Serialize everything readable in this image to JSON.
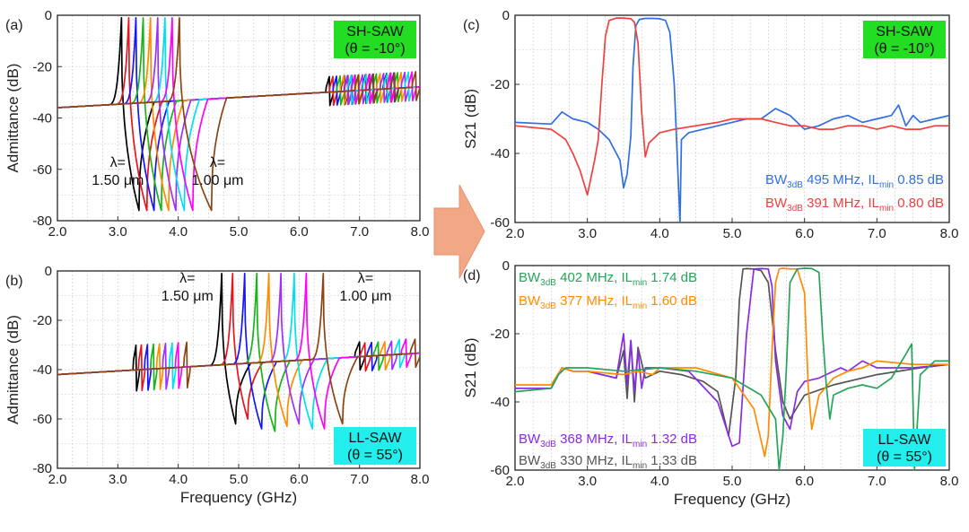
{
  "chart_data": [
    {
      "id": "a",
      "panel_label": "(a)",
      "type": "line",
      "xlabel": "",
      "ylabel": "Admittance (dB)",
      "xlim": [
        2.0,
        8.0
      ],
      "ylim": [
        -80,
        0
      ],
      "xticks": [
        "2.0",
        "3.0",
        "4.0",
        "5.0",
        "6.0",
        "7.0",
        "8.0"
      ],
      "yticks": [
        "0",
        "-20",
        "-40",
        "-60",
        "-80"
      ],
      "grid": true,
      "badge": {
        "line1": "SH-SAW",
        "line2": "(θ = -10°)",
        "color": "#22dd22",
        "placement": "top-right"
      },
      "annotations": [
        {
          "line1": "λ=",
          "line2": "1.50 μm",
          "x": 3.0,
          "y": -66
        },
        {
          "line1": "λ=",
          "line2": "1.00 μm",
          "x": 4.65,
          "y": -66
        }
      ],
      "series": [
        {
          "color": "#000000",
          "resonance": 3.06,
          "anti_resonance": 3.35,
          "fmin": 3.33,
          "fmax": 3.37
        },
        {
          "color": "#e8141e",
          "resonance": 3.18,
          "anti_resonance": 3.48,
          "fmin": 3.46,
          "fmax": 3.5
        },
        {
          "color": "#1414ff",
          "resonance": 3.3,
          "anti_resonance": 3.6,
          "fmin": 3.58,
          "fmax": 3.62
        },
        {
          "color": "#18b418",
          "resonance": 3.42,
          "anti_resonance": 3.72,
          "fmin": 3.7,
          "fmax": 3.74
        },
        {
          "color": "#ff8c00",
          "resonance": 3.54,
          "anti_resonance": 3.84,
          "fmin": 3.82,
          "fmax": 3.86
        },
        {
          "color": "#9b30ff",
          "resonance": 3.66,
          "anti_resonance": 3.96,
          "fmin": 3.94,
          "fmax": 3.98
        },
        {
          "color": "#00e0ee",
          "resonance": 3.78,
          "anti_resonance": 4.1,
          "fmin": 4.08,
          "fmax": 4.12
        },
        {
          "color": "#ff00ff",
          "resonance": 3.9,
          "anti_resonance": 4.24,
          "fmin": 4.22,
          "fmax": 4.26
        },
        {
          "color": "#8b4513",
          "resonance": 4.02,
          "anti_resonance": 4.55,
          "fmin": 4.53,
          "fmax": 4.57
        }
      ]
    },
    {
      "id": "b",
      "panel_label": "(b)",
      "type": "line",
      "xlabel": "Frequency (GHz)",
      "ylabel": "Admittance (dB)",
      "xlim": [
        2.0,
        8.0
      ],
      "ylim": [
        -80,
        0
      ],
      "xticks": [
        "2.0",
        "3.0",
        "4.0",
        "5.0",
        "6.0",
        "7.0",
        "8.0"
      ],
      "yticks": [
        "0",
        "-20",
        "-40",
        "-60",
        "-80"
      ],
      "grid": true,
      "badge": {
        "line1": "LL-SAW",
        "line2": "(θ = 55°)",
        "color": "#22eeee",
        "placement": "bottom-right"
      },
      "annotations": [
        {
          "line1": "λ=",
          "line2": "1.50 μm",
          "x": 4.15,
          "y": -12
        },
        {
          "line1": "λ=",
          "line2": "1.00 μm",
          "x": 7.1,
          "y": -12
        }
      ],
      "series": [
        {
          "color": "#000000",
          "resonance": 4.72,
          "anti_resonance": 4.95,
          "fmin": -62
        },
        {
          "color": "#e8141e",
          "resonance": 4.9,
          "anti_resonance": 5.15,
          "fmin": -60
        },
        {
          "color": "#1414ff",
          "resonance": 5.1,
          "anti_resonance": 5.38,
          "fmin": -64
        },
        {
          "color": "#18b418",
          "resonance": 5.3,
          "anti_resonance": 5.6,
          "fmin": -65
        },
        {
          "color": "#ff8c00",
          "resonance": 5.5,
          "anti_resonance": 5.8,
          "fmin": -63
        },
        {
          "color": "#9b30ff",
          "resonance": 5.7,
          "anti_resonance": 6.0,
          "fmin": -62
        },
        {
          "color": "#00e0ee",
          "resonance": 5.92,
          "anti_resonance": 6.22,
          "fmin": -64
        },
        {
          "color": "#ff00ff",
          "resonance": 6.12,
          "anti_resonance": 6.42,
          "fmin": -64
        },
        {
          "color": "#8b4513",
          "resonance": 6.4,
          "anti_resonance": 6.72,
          "fmin": -62
        }
      ]
    },
    {
      "id": "c",
      "panel_label": "(c)",
      "type": "line",
      "xlabel": "",
      "ylabel": "S21 (dB)",
      "xlim": [
        2.0,
        8.0
      ],
      "ylim": [
        -60,
        0
      ],
      "xticks": [
        "2.0",
        "3.0",
        "4.0",
        "5.0",
        "6.0",
        "7.0",
        "8.0"
      ],
      "yticks": [
        "0",
        "-20",
        "-40",
        "-60"
      ],
      "grid": true,
      "badge": {
        "line1": "SH-SAW",
        "line2": "(θ = -10°)",
        "color": "#22dd22",
        "placement": "top-right"
      },
      "legend_texts": [
        {
          "prefix": "BW",
          "sub1": "3dB",
          "mid": " 495 MHz, IL",
          "sub2": "min",
          "suffix": " 0.85 dB",
          "color": "#3070e0"
        },
        {
          "prefix": "BW",
          "sub1": "3dB",
          "mid": " 391 MHz, IL",
          "sub2": "min",
          "suffix": " 0.80 dB",
          "color": "#f04040"
        }
      ],
      "series": [
        {
          "color": "#3070e0",
          "x": [
            2.0,
            2.5,
            2.65,
            2.8,
            3.0,
            3.15,
            3.3,
            3.45,
            3.5,
            3.55,
            3.6,
            3.63,
            3.67,
            3.72,
            3.8,
            3.9,
            4.0,
            4.08,
            4.14,
            4.2,
            4.25,
            4.28,
            4.3,
            4.4,
            4.6,
            4.8,
            5.0,
            5.2,
            5.4,
            5.6,
            5.8,
            6.0,
            6.2,
            6.4,
            6.6,
            6.8,
            7.0,
            7.2,
            7.3,
            7.4,
            7.5,
            7.6,
            7.8,
            8.0
          ],
          "y": [
            -31,
            -31.5,
            -28,
            -30,
            -31,
            -33,
            -36,
            -42,
            -50,
            -46,
            -35,
            -15,
            -3,
            -1.2,
            -0.9,
            -0.9,
            -1,
            -1.5,
            -5,
            -20,
            -45,
            -60,
            -36,
            -34,
            -33,
            -32,
            -31,
            -30,
            -30,
            -27,
            -29,
            -33,
            -32,
            -30,
            -29,
            -31,
            -30,
            -29,
            -26,
            -32,
            -29,
            -31,
            -30,
            -29
          ]
        },
        {
          "color": "#f04040",
          "x": [
            2.0,
            2.5,
            2.7,
            2.8,
            2.9,
            3.0,
            3.05,
            3.1,
            3.15,
            3.2,
            3.25,
            3.3,
            3.4,
            3.5,
            3.6,
            3.65,
            3.7,
            3.75,
            3.8,
            3.85,
            3.9,
            4.0,
            4.2,
            4.5,
            4.8,
            5.0,
            5.2,
            5.4,
            5.6,
            5.8,
            6.0,
            6.2,
            6.4,
            6.6,
            6.8,
            7.0,
            7.2,
            7.4,
            7.6,
            7.8,
            8.0
          ],
          "y": [
            -32,
            -33,
            -36,
            -40,
            -45,
            -52,
            -47,
            -42,
            -36,
            -20,
            -6,
            -1.5,
            -0.8,
            -0.8,
            -1,
            -2,
            -8,
            -28,
            -41,
            -37,
            -36,
            -34,
            -33,
            -32,
            -31,
            -30,
            -30,
            -30,
            -31,
            -32,
            -32,
            -33,
            -33,
            -32,
            -32,
            -33,
            -32,
            -33,
            -33,
            -32,
            -32
          ]
        }
      ]
    },
    {
      "id": "d",
      "panel_label": "(d)",
      "type": "line",
      "xlabel": "Frequency (GHz)",
      "ylabel": "S21 (dB)",
      "xlim": [
        2.0,
        8.0
      ],
      "ylim": [
        -60,
        0
      ],
      "xticks": [
        "2.0",
        "3.0",
        "4.0",
        "5.0",
        "6.0",
        "7.0",
        "8.0"
      ],
      "yticks": [
        "0",
        "-20",
        "-40",
        "-60"
      ],
      "grid": true,
      "badge": {
        "line1": "LL-SAW",
        "line2": "(θ = 55°)",
        "color": "#22eeee",
        "placement": "bottom-right"
      },
      "legend_texts": [
        {
          "prefix": "BW",
          "sub1": "3dB",
          "mid": " 402 MHz, IL",
          "sub2": "min",
          "suffix": " 1.74 dB",
          "color": "#27a35a",
          "placement": "top"
        },
        {
          "prefix": "BW",
          "sub1": "3dB",
          "mid": " 377 MHz, IL",
          "sub2": "min",
          "suffix": " 1.60 dB",
          "color": "#ff8c00",
          "placement": "top"
        },
        {
          "prefix": "BW",
          "sub1": "3dB",
          "mid": " 368 MHz, IL",
          "sub2": "min",
          "suffix": " 1.32 dB",
          "color": "#8a2be2",
          "placement": "bottom"
        },
        {
          "prefix": "BW",
          "sub1": "3dB",
          "mid": " 330 MHz, IL",
          "sub2": "min",
          "suffix": " 1.33 dB",
          "color": "#555555",
          "placement": "bottom"
        }
      ],
      "series": [
        {
          "color": "#555555",
          "x": [
            2.0,
            2.5,
            2.65,
            2.8,
            3.0,
            3.4,
            3.5,
            3.55,
            3.6,
            3.65,
            3.7,
            3.8,
            4.0,
            4.3,
            4.6,
            4.8,
            4.95,
            5.05,
            5.1,
            5.15,
            5.2,
            5.3,
            5.4,
            5.5,
            5.6,
            5.7,
            5.8,
            6.0,
            6.4,
            7.0,
            7.6,
            8.0
          ],
          "y": [
            -36,
            -36,
            -30,
            -31,
            -31,
            -33,
            -25,
            -39,
            -22,
            -40,
            -24,
            -33,
            -31,
            -32,
            -34,
            -37,
            -50,
            -33,
            -10,
            -1,
            -0.9,
            -1,
            -1.5,
            -5,
            -25,
            -40,
            -45,
            -38,
            -35,
            -32,
            -30,
            -29
          ]
        },
        {
          "color": "#8a2be2",
          "x": [
            2.0,
            2.5,
            2.65,
            2.8,
            3.0,
            3.4,
            3.5,
            3.55,
            3.6,
            3.65,
            3.7,
            3.75,
            3.8,
            4.0,
            4.4,
            4.8,
            5.0,
            5.1,
            5.2,
            5.3,
            5.4,
            5.5,
            5.55,
            5.6,
            5.7,
            5.8,
            5.9,
            6.0,
            6.2,
            6.5,
            6.6,
            6.8,
            7.0,
            7.5,
            8.0
          ],
          "y": [
            -36,
            -36,
            -30,
            -31,
            -31,
            -33,
            -20,
            -35,
            -22,
            -37,
            -25,
            -36,
            -30,
            -30,
            -31,
            -40,
            -53,
            -52,
            -20,
            -1,
            -0.9,
            -1,
            -6,
            -28,
            -44,
            -48,
            -37,
            -34,
            -33,
            -30,
            -31,
            -28,
            -30,
            -30,
            -29
          ]
        },
        {
          "color": "#ff8c00",
          "x": [
            2.0,
            2.5,
            2.65,
            2.8,
            3.0,
            3.5,
            3.7,
            3.9,
            4.0,
            4.5,
            5.0,
            5.3,
            5.45,
            5.5,
            5.55,
            5.6,
            5.65,
            5.7,
            5.8,
            5.9,
            6.0,
            6.05,
            6.1,
            6.2,
            6.4,
            6.6,
            6.8,
            7.0,
            7.5,
            8.0
          ],
          "y": [
            -35,
            -35,
            -30,
            -31,
            -31,
            -32,
            -31,
            -32,
            -30,
            -30,
            -33,
            -42,
            -56,
            -50,
            -25,
            -5,
            -1,
            -0.8,
            -1,
            -1,
            -8,
            -35,
            -48,
            -38,
            -33,
            -31,
            -30,
            -28,
            -29,
            -29
          ]
        },
        {
          "color": "#27a35a",
          "x": [
            2.0,
            2.5,
            2.6,
            2.7,
            2.8,
            3.0,
            3.5,
            4.0,
            4.5,
            5.0,
            5.4,
            5.6,
            5.65,
            5.7,
            5.75,
            5.8,
            5.9,
            6.0,
            6.1,
            6.2,
            6.25,
            6.3,
            6.35,
            6.4,
            6.6,
            6.8,
            7.0,
            7.2,
            7.4,
            7.48,
            7.52,
            7.6,
            7.8,
            8.0
          ],
          "y": [
            -37,
            -36,
            -32,
            -30,
            -30,
            -30,
            -31,
            -30,
            -31,
            -33,
            -38,
            -45,
            -60,
            -50,
            -30,
            -5,
            -1,
            -0.8,
            -0.9,
            -2,
            -20,
            -35,
            -45,
            -38,
            -36,
            -35,
            -36,
            -33,
            -26,
            -23,
            -60,
            -32,
            -28,
            -28
          ]
        }
      ]
    }
  ]
}
